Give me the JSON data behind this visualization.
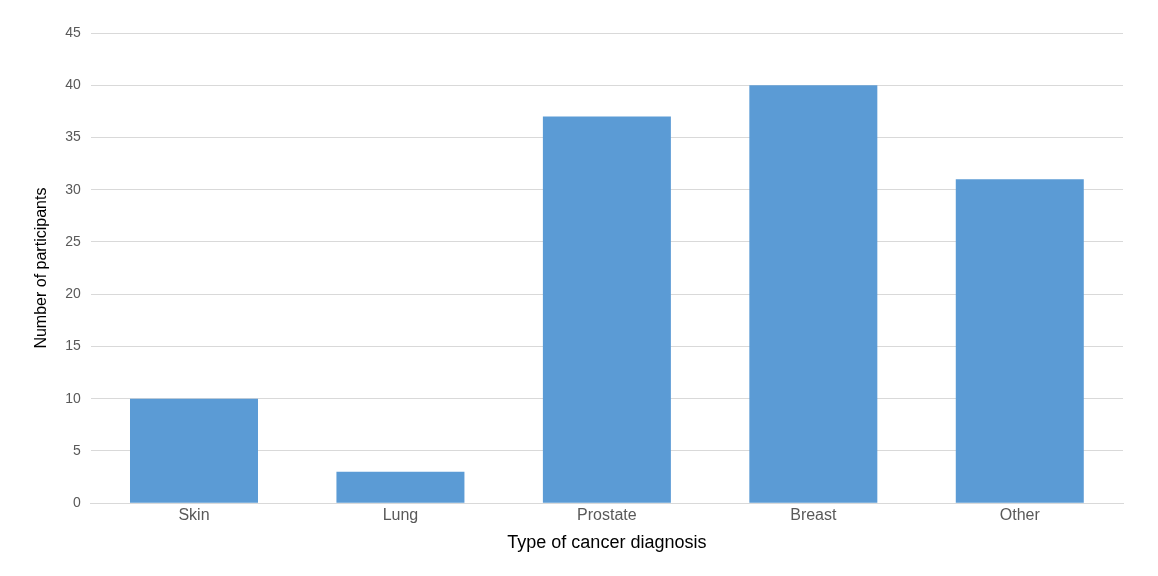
{
  "chart_data": {
    "type": "bar",
    "xlabel": "Type of cancer diagnosis",
    "ylabel": "Number of participants",
    "categories": [
      "Skin",
      "Lung",
      "Prostate",
      "Breast",
      "Other"
    ],
    "values": [
      10,
      3,
      37,
      40,
      31
    ],
    "color": "#5b9bd5",
    "ylim": [
      0,
      45
    ],
    "yticks": [
      0,
      5,
      10,
      15,
      20,
      25,
      30,
      35,
      40,
      45
    ],
    "grid": "y",
    "legend": false
  }
}
